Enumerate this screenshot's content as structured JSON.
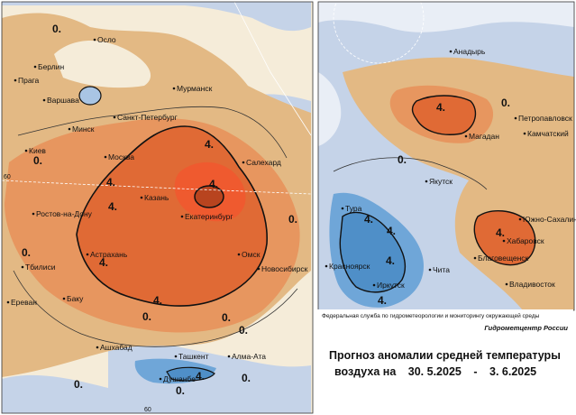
{
  "left_map": {
    "cities": [
      {
        "name": "Осло",
        "icon": "city-dot"
      },
      {
        "name": "Берлин",
        "icon": "city-dot"
      },
      {
        "name": "Прага",
        "icon": "city-dot"
      },
      {
        "name": "Варшава",
        "icon": "city-dot"
      },
      {
        "name": "Минск",
        "icon": "city-dot"
      },
      {
        "name": "Киев",
        "icon": "city-dot"
      },
      {
        "name": "Мурманск",
        "icon": "city-dot"
      },
      {
        "name": "Санкт-Петербург",
        "icon": "city-dot"
      },
      {
        "name": "Москва",
        "icon": "city-dot"
      },
      {
        "name": "Салехард",
        "icon": "city-dot"
      },
      {
        "name": "Казань",
        "icon": "city-dot"
      },
      {
        "name": "Ростов-на-Дону",
        "icon": "city-dot"
      },
      {
        "name": "Екатеринбург",
        "icon": "city-dot"
      },
      {
        "name": "Астрахань",
        "icon": "city-dot"
      },
      {
        "name": "Тбилиси",
        "icon": "city-dot"
      },
      {
        "name": "Омск",
        "icon": "city-dot"
      },
      {
        "name": "Ереван",
        "icon": "city-dot"
      },
      {
        "name": "Новосибирск",
        "icon": "city-dot"
      },
      {
        "name": "Баку",
        "icon": "city-dot"
      },
      {
        "name": "Ашхабад",
        "icon": "city-dot"
      },
      {
        "name": "Ташкент",
        "icon": "city-dot"
      },
      {
        "name": "Алма-Ата",
        "icon": "city-dot"
      },
      {
        "name": "Душанбе",
        "icon": "city-dot"
      }
    ],
    "isolines": [
      "0.",
      "0.",
      "0.",
      "0.",
      "4.",
      "4.",
      "4.",
      "4.",
      "4.",
      "4.",
      "0.",
      "0.",
      "0.",
      "4.",
      "0.",
      "0.",
      "0."
    ],
    "grid_labels": [
      "60",
      "60"
    ]
  },
  "right_map": {
    "cities": [
      {
        "name": "Анадырь",
        "icon": "city-dot"
      },
      {
        "name": "Петропавловск",
        "icon": "city-dot"
      },
      {
        "name": "Магадан",
        "icon": "city-dot"
      },
      {
        "name": "Камчатский",
        "icon": "city-dot"
      },
      {
        "name": "Якутск",
        "icon": "city-dot"
      },
      {
        "name": "Тура",
        "icon": "city-dot"
      },
      {
        "name": "Южно-Сахалинск",
        "icon": "city-dot"
      },
      {
        "name": "Хабаровск",
        "icon": "city-dot"
      },
      {
        "name": "Благовещенск",
        "icon": "city-dot"
      },
      {
        "name": "Красноярск",
        "icon": "city-dot"
      },
      {
        "name": "Иркутск",
        "icon": "city-dot"
      },
      {
        "name": "Чита",
        "icon": "city-dot"
      },
      {
        "name": "Владивосток",
        "icon": "city-dot"
      }
    ],
    "isolines": [
      "4.",
      "0.",
      "0.",
      "4.",
      "4.",
      "4.",
      "4.",
      "4."
    ]
  },
  "legend": {
    "agency": "Федеральная служба по гидрометеорологии и мониторингу окружающей среды",
    "center": "Гидрометцентр России",
    "title_line1": "Прогноз аномалии средней температуры",
    "title_line2_prefix": "воздуха на",
    "date_from": "30. 5.2025",
    "dash": "-",
    "date_to": "3. 6.2025"
  },
  "colors": {
    "sea": "#c5d3e8",
    "land_neutral": "#f5ecd9",
    "anom_plus_weak": "#e3b984",
    "anom_plus_mid": "#e7965f",
    "anom_plus_strong": "#e06a35",
    "anom_plus_max": "#ef5a2f",
    "anom_minus_weak": "#a9c5e4",
    "anom_minus_mid": "#6fa6d8",
    "anom_minus_strong": "#4f8fc8"
  }
}
